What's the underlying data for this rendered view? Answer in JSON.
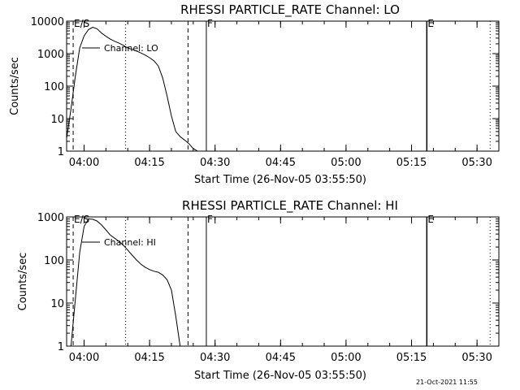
{
  "footer": {
    "timestamp": "21-Oct-2021 11:55"
  },
  "chart_data": [
    {
      "type": "line",
      "title": "RHESSI PARTICLE_RATE Channel: LO",
      "xlabel": "Start Time (26-Nov-05 03:55:50)",
      "ylabel": "Counts/sec",
      "yscale": "log",
      "xlim": [
        "03:56",
        "05:35"
      ],
      "ylim": [
        1,
        10000
      ],
      "xticks": [
        "04:00",
        "04:15",
        "04:30",
        "04:45",
        "05:00",
        "05:15",
        "05:30"
      ],
      "yticks": [
        "1",
        "10",
        "100",
        "1000",
        "10000"
      ],
      "legend": "Channel: LO",
      "markers": [
        {
          "x": "03:57.5",
          "style": "dashed",
          "label": "E/S"
        },
        {
          "x": "04:09.5",
          "style": "dotted",
          "label": ""
        },
        {
          "x": "04:23.8",
          "style": "dashed",
          "label": ""
        },
        {
          "x": "04:28.0",
          "style": "solid",
          "label": "F"
        },
        {
          "x": "05:18.5",
          "style": "solid",
          "label": "E"
        },
        {
          "x": "05:33.0",
          "style": "dotted",
          "label": ""
        }
      ],
      "x": [
        "03:56",
        "03:57",
        "03:58",
        "03:59",
        "04:00",
        "04:01",
        "04:02",
        "04:03",
        "04:04",
        "04:05",
        "04:06",
        "04:07",
        "04:08",
        "04:09",
        "04:10",
        "04:11",
        "04:12",
        "04:13",
        "04:14",
        "04:15",
        "04:16",
        "04:17",
        "04:18",
        "04:19",
        "04:20",
        "04:21",
        "04:22",
        "04:23",
        "04:24",
        "04:25",
        "04:26"
      ],
      "values": [
        2.5,
        20,
        200,
        1500,
        3500,
        5500,
        6500,
        5800,
        4300,
        3400,
        2800,
        2400,
        2100,
        1800,
        1500,
        1350,
        1200,
        1050,
        900,
        750,
        600,
        420,
        180,
        50,
        12,
        4,
        2.8,
        2.2,
        1.7,
        1.2,
        1
      ]
    },
    {
      "type": "line",
      "title": "RHESSI PARTICLE_RATE Channel: HI",
      "xlabel": "Start Time (26-Nov-05 03:55:50)",
      "ylabel": "Counts/sec",
      "yscale": "log",
      "xlim": [
        "03:56",
        "05:35"
      ],
      "ylim": [
        1,
        1000
      ],
      "xticks": [
        "04:00",
        "04:15",
        "04:30",
        "04:45",
        "05:00",
        "05:15",
        "05:30"
      ],
      "yticks": [
        "1",
        "10",
        "100",
        "1000"
      ],
      "legend": "Channel: HI",
      "markers": [
        {
          "x": "03:57.5",
          "style": "dashed",
          "label": "E/S"
        },
        {
          "x": "04:09.5",
          "style": "dotted",
          "label": ""
        },
        {
          "x": "04:23.8",
          "style": "dashed",
          "label": ""
        },
        {
          "x": "04:28.0",
          "style": "solid",
          "label": "F"
        },
        {
          "x": "05:18.5",
          "style": "solid",
          "label": "E"
        },
        {
          "x": "05:33.0",
          "style": "dotted",
          "label": ""
        }
      ],
      "x": [
        "03:57",
        "03:58",
        "03:59",
        "04:00",
        "04:01",
        "04:02",
        "04:03",
        "04:04",
        "04:05",
        "04:06",
        "04:07",
        "04:08",
        "04:09",
        "04:10",
        "04:11",
        "04:12",
        "04:13",
        "04:14",
        "04:15",
        "04:16",
        "04:17",
        "04:18",
        "04:19",
        "04:20",
        "04:21",
        "04:22"
      ],
      "values": [
        1,
        12,
        150,
        600,
        900,
        880,
        800,
        650,
        500,
        380,
        320,
        270,
        220,
        170,
        130,
        100,
        80,
        68,
        60,
        55,
        52,
        45,
        35,
        20,
        5,
        1
      ]
    }
  ]
}
